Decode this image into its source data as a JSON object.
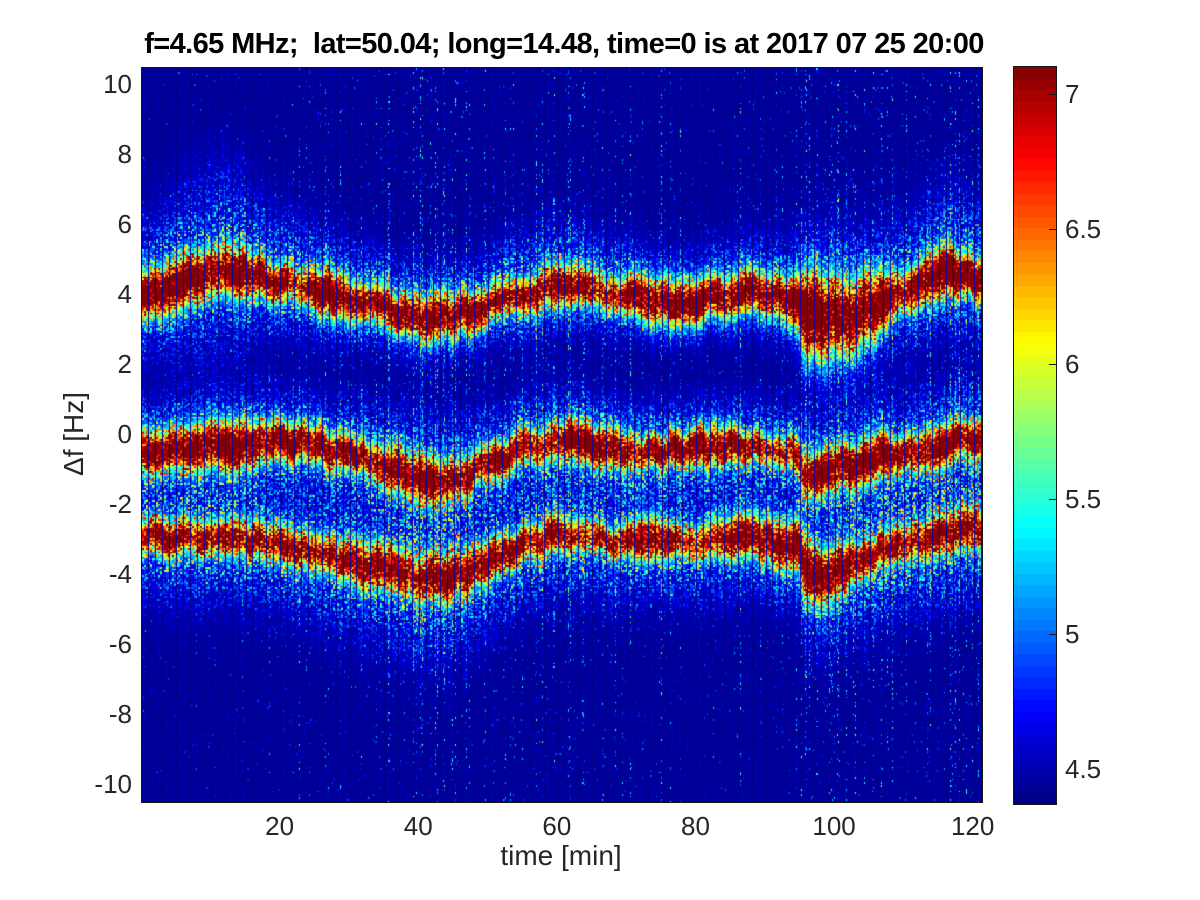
{
  "chart_data": {
    "type": "heatmap",
    "title": "f=4.65 MHz;  lat=50.04; long=14.48, time=0 is at 2017 07 25 20:00",
    "xlabel": "time [min]",
    "ylabel": "Δf [Hz]",
    "x_range": [
      0,
      121.2
    ],
    "y_range": [
      -10.49,
      10.49
    ],
    "x_ticks": [
      20,
      40,
      60,
      80,
      100,
      120
    ],
    "y_ticks": [
      10,
      8,
      6,
      4,
      2,
      0,
      -2,
      -4,
      -6,
      -8,
      -10
    ],
    "grid": false,
    "colormap": "jet",
    "color_levels": 64,
    "color_range": [
      4.37,
      7.1
    ],
    "colorbar_ticks": [
      4.5,
      5,
      5.5,
      6,
      6.5,
      7
    ],
    "noise_floor": 4.42,
    "columns_per_minute": 7,
    "rows": 430,
    "minute_gap_lines": true,
    "seed": 20170725,
    "bands": [
      {
        "name": "upper-trace",
        "t": [
          0,
          3,
          6,
          9,
          11.5,
          15,
          18,
          22,
          26,
          30,
          34,
          38,
          41,
          44,
          47,
          50,
          53,
          56,
          60,
          63,
          66,
          70,
          74,
          78,
          82,
          86,
          90,
          93,
          94.6,
          95.4,
          98,
          101,
          104,
          107,
          110,
          113,
          116,
          119,
          121.2
        ],
        "center": [
          4.0,
          4.15,
          4.35,
          4.6,
          4.72,
          4.6,
          4.45,
          4.28,
          4.12,
          3.92,
          3.7,
          3.48,
          3.38,
          3.4,
          3.55,
          3.75,
          3.95,
          4.1,
          4.3,
          4.25,
          4.1,
          3.92,
          3.8,
          3.8,
          3.95,
          4.05,
          4.0,
          3.9,
          3.82,
          3.55,
          3.45,
          3.4,
          3.55,
          3.85,
          4.15,
          4.4,
          4.62,
          4.55,
          4.45
        ],
        "amp": [
          2.808,
          2.863,
          2.918,
          2.973,
          3.029,
          2.973,
          2.953,
          2.898,
          2.843,
          2.843,
          2.843,
          2.789,
          2.843,
          2.843,
          2.789,
          2.734,
          2.789,
          2.843,
          2.898,
          2.843,
          2.843,
          2.898,
          2.843,
          2.789,
          2.843,
          2.843,
          2.789,
          2.843,
          3.241,
          3.428,
          3.49,
          3.49,
          3.366,
          3.241,
          3.043,
          3.101,
          3.101,
          3.043,
          2.985
        ],
        "core_width": [
          0.367,
          0.392,
          0.404,
          0.417,
          0.429,
          0.404,
          0.408,
          0.395,
          0.395,
          0.382,
          0.368,
          0.368,
          0.395,
          0.395,
          0.368,
          0.368,
          0.368,
          0.382,
          0.395,
          0.382,
          0.368,
          0.395,
          0.368,
          0.356,
          0.368,
          0.368,
          0.382,
          0.408,
          0.434,
          0.659,
          0.738,
          0.738,
          0.631,
          0.474,
          0.408,
          0.408,
          0.422,
          0.395,
          0.382
        ],
        "halo_width": [
          0.977,
          1.127,
          1.265,
          1.357,
          1.38,
          1.265,
          0.98,
          0.9,
          0.85,
          0.78,
          0.72,
          0.7,
          0.72,
          0.72,
          0.7,
          0.72,
          0.78,
          0.82,
          0.85,
          0.8,
          0.75,
          0.72,
          0.68,
          0.66,
          0.7,
          0.72,
          0.75,
          0.82,
          0.88,
          1.1,
          1.18,
          1.18,
          1.08,
          0.92,
          0.96,
          1.03,
          1.08,
          1.03,
          0.98
        ],
        "halo_asym_up": 1.22,
        "halo_asym_down": 0.95
      },
      {
        "name": "middle-trace",
        "t": [
          0,
          4,
          8,
          12,
          16,
          20,
          24,
          28,
          32,
          36,
          40,
          43,
          46,
          49,
          52,
          55,
          58,
          62,
          66,
          70,
          74,
          78,
          82,
          86,
          90,
          93,
          94.6,
          95.4,
          99,
          103,
          107,
          111,
          115,
          118,
          121.2
        ],
        "center": [
          -0.55,
          -0.45,
          -0.32,
          -0.22,
          -0.17,
          -0.18,
          -0.25,
          -0.4,
          -0.62,
          -0.95,
          -1.25,
          -1.45,
          -1.25,
          -0.92,
          -0.6,
          -0.38,
          -0.25,
          -0.18,
          -0.28,
          -0.42,
          -0.45,
          -0.4,
          -0.32,
          -0.28,
          -0.35,
          -0.45,
          -0.5,
          -1.1,
          -1.0,
          -0.8,
          -0.52,
          -0.45,
          -0.3,
          -0.15,
          -0.1
        ],
        "amp": [
          3.194,
          3.258,
          3.322,
          2.985,
          2.985,
          2.928,
          2.871,
          2.871,
          2.871,
          2.928,
          2.985,
          2.985,
          2.928,
          2.871,
          2.871,
          2.928,
          2.985,
          2.985,
          2.928,
          2.871,
          2.871,
          2.871,
          2.928,
          2.871,
          2.814,
          2.871,
          2.871,
          2.985,
          2.928,
          2.871,
          2.871,
          2.871,
          2.871,
          2.871,
          2.871
        ],
        "core_width": [
          0.365,
          0.389,
          0.402,
          0.402,
          0.389,
          0.377,
          0.365,
          0.365,
          0.377,
          0.389,
          0.402,
          0.402,
          0.389,
          0.365,
          0.365,
          0.365,
          0.377,
          0.377,
          0.365,
          0.353,
          0.353,
          0.353,
          0.353,
          0.342,
          0.342,
          0.365,
          0.365,
          0.438,
          0.414,
          0.389,
          0.365,
          0.365,
          0.353,
          0.342,
          0.342
        ],
        "halo_width": [
          0.85,
          0.9,
          0.95,
          0.95,
          0.9,
          0.85,
          0.82,
          0.85,
          0.92,
          1.0,
          1.05,
          1.05,
          1.0,
          0.9,
          0.82,
          0.85,
          0.88,
          0.88,
          0.85,
          0.8,
          0.78,
          0.78,
          0.8,
          0.78,
          0.75,
          0.8,
          0.82,
          0.95,
          0.95,
          0.95,
          0.95,
          0.95,
          0.95,
          0.95,
          0.95
        ],
        "halo_asym_up": 1.0,
        "halo_asym_down": 1.15
      },
      {
        "name": "lower-trace",
        "t": [
          0,
          5,
          10,
          14,
          18,
          22,
          26,
          30,
          34,
          38,
          41,
          44,
          47,
          50,
          53,
          56,
          59,
          62,
          65,
          68,
          72,
          76,
          80,
          84,
          88,
          92,
          94.6,
          95.4,
          99,
          103,
          107,
          111,
          115,
          118,
          121.2
        ],
        "center": [
          -2.9,
          -2.92,
          -2.98,
          -3.0,
          -3.05,
          -3.18,
          -3.38,
          -3.55,
          -3.75,
          -3.95,
          -4.1,
          -4.12,
          -3.85,
          -3.55,
          -3.3,
          -3.05,
          -2.88,
          -2.85,
          -2.95,
          -3.02,
          -2.95,
          -2.98,
          -3.05,
          -2.98,
          -2.92,
          -3.05,
          -3.15,
          -3.85,
          -3.95,
          -3.6,
          -3.25,
          -3.0,
          -2.85,
          -2.75,
          -2.65
        ],
        "amp": [
          2.734,
          2.734,
          2.734,
          2.734,
          2.68,
          2.68,
          2.734,
          2.734,
          2.734,
          2.734,
          2.789,
          2.789,
          2.734,
          2.68,
          2.68,
          2.734,
          2.734,
          2.734,
          2.68,
          2.68,
          2.68,
          2.68,
          2.68,
          2.68,
          2.68,
          2.68,
          2.894,
          3.011,
          3.011,
          2.953,
          2.68,
          2.734,
          2.734,
          2.68,
          2.68
        ],
        "core_width": [
          0.342,
          0.353,
          0.365,
          0.365,
          0.365,
          0.365,
          0.365,
          0.377,
          0.377,
          0.389,
          0.402,
          0.402,
          0.377,
          0.365,
          0.353,
          0.353,
          0.353,
          0.353,
          0.342,
          0.342,
          0.342,
          0.342,
          0.342,
          0.342,
          0.342,
          0.353,
          0.365,
          0.463,
          0.438,
          0.389,
          0.365,
          0.353,
          0.353,
          0.342,
          0.342
        ],
        "halo_width": [
          0.8,
          0.82,
          0.85,
          0.85,
          0.85,
          0.85,
          0.88,
          0.92,
          0.96,
          1.02,
          1.05,
          1.05,
          0.98,
          0.88,
          0.82,
          0.8,
          0.8,
          0.8,
          0.78,
          0.78,
          0.76,
          0.76,
          0.76,
          0.76,
          0.76,
          0.78,
          0.8,
          0.95,
          0.92,
          0.9,
          0.9,
          0.9,
          0.9,
          0.9,
          0.9
        ],
        "halo_asym_up": 0.95,
        "halo_asym_down": 1.3
      }
    ],
    "background_activity": {
      "t": [
        0,
        6,
        12,
        18,
        24,
        30,
        34,
        38,
        42,
        46,
        50,
        55,
        60,
        65,
        70,
        75,
        80,
        85,
        90,
        94,
        96,
        100,
        105,
        110,
        115,
        121.2
      ],
      "level": [
        0.3,
        0.25,
        0.28,
        0.32,
        0.4,
        0.55,
        0.7,
        0.75,
        0.7,
        0.6,
        0.55,
        0.6,
        0.68,
        0.65,
        0.6,
        0.45,
        0.42,
        0.5,
        0.52,
        0.55,
        0.9,
        0.85,
        0.8,
        0.85,
        0.9,
        0.85
      ],
      "streaks_t": [
        30.2,
        35.5,
        37.9,
        40.1,
        42.5,
        44.6,
        46.8,
        52.3,
        56.9,
        59.3,
        61.8,
        63.7,
        66.4,
        68.2,
        70.4,
        86.2,
        95.0,
        97.3,
        99.4,
        101.5,
        105.3,
        108.2,
        111.9,
        113.6,
        117.8,
        119.6
      ],
      "streaks_strength": [
        1.3,
        1.9,
        1.3,
        1.6,
        1.5,
        1.2,
        1.2,
        1.1,
        1.2,
        1.4,
        1.2,
        1.3,
        1.1,
        1.1,
        1.3,
        1.1,
        1.6,
        1.0,
        1.2,
        1.4,
        1.1,
        1.3,
        1.2,
        1.5,
        1.3,
        1.2
      ]
    }
  }
}
